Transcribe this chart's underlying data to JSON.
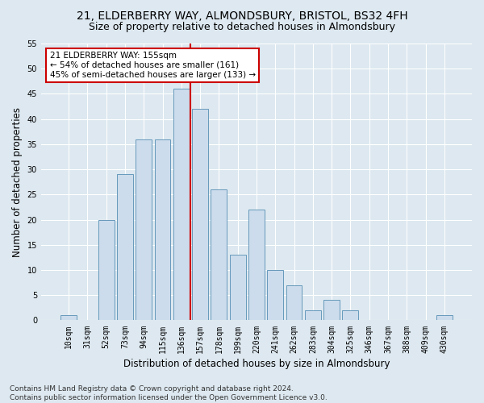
{
  "title_line1": "21, ELDERBERRY WAY, ALMONDSBURY, BRISTOL, BS32 4FH",
  "title_line2": "Size of property relative to detached houses in Almondsbury",
  "xlabel": "Distribution of detached houses by size in Almondsbury",
  "ylabel": "Number of detached properties",
  "footnote": "Contains HM Land Registry data © Crown copyright and database right 2024.\nContains public sector information licensed under the Open Government Licence v3.0.",
  "bar_labels": [
    "10sqm",
    "31sqm",
    "52sqm",
    "73sqm",
    "94sqm",
    "115sqm",
    "136sqm",
    "157sqm",
    "178sqm",
    "199sqm",
    "220sqm",
    "241sqm",
    "262sqm",
    "283sqm",
    "304sqm",
    "325sqm",
    "346sqm",
    "367sqm",
    "388sqm",
    "409sqm",
    "430sqm"
  ],
  "bar_values": [
    1,
    0,
    20,
    29,
    36,
    36,
    46,
    42,
    26,
    13,
    22,
    10,
    7,
    2,
    4,
    2,
    0,
    0,
    0,
    0,
    1
  ],
  "bar_color": "#ccdcec",
  "bar_edge_color": "#6699bb",
  "red_line_index": 7,
  "red_line_color": "#cc0000",
  "annotation_text": "21 ELDERBERRY WAY: 155sqm\n← 54% of detached houses are smaller (161)\n45% of semi-detached houses are larger (133) →",
  "annotation_box_color": "#ffffff",
  "annotation_box_edge_color": "#cc0000",
  "ylim": [
    0,
    55
  ],
  "yticks": [
    0,
    5,
    10,
    15,
    20,
    25,
    30,
    35,
    40,
    45,
    50,
    55
  ],
  "background_color": "#dde8f0",
  "plot_bg_color": "#dde8f0",
  "grid_color": "#ffffff",
  "title_fontsize": 10,
  "subtitle_fontsize": 9,
  "label_fontsize": 8.5,
  "tick_fontsize": 7,
  "footnote_fontsize": 6.5,
  "annotation_fontsize": 7.5
}
